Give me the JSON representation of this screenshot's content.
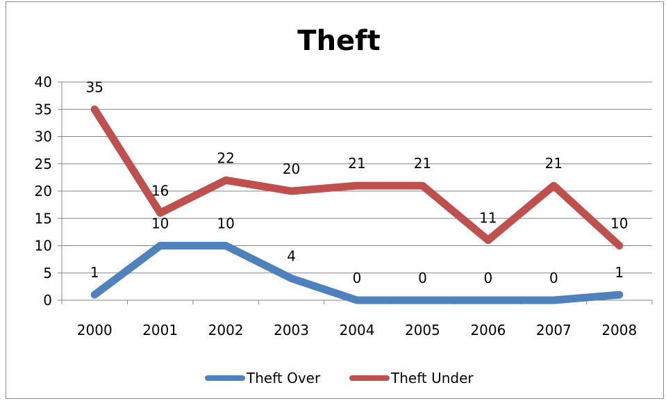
{
  "chart_data": {
    "type": "line",
    "title": "Theft",
    "categories": [
      "2000",
      "2001",
      "2002",
      "2003",
      "2004",
      "2005",
      "2006",
      "2007",
      "2008"
    ],
    "ylim": [
      0,
      40
    ],
    "yticks": [
      0,
      5,
      10,
      15,
      20,
      25,
      30,
      35,
      40
    ],
    "grid": true,
    "legend_position": "bottom",
    "series": [
      {
        "name": "Theft Over",
        "color": "#4f81bd",
        "values": [
          1,
          10,
          10,
          4,
          0,
          0,
          0,
          0,
          1
        ]
      },
      {
        "name": "Theft Under",
        "color": "#c0504d",
        "values": [
          35,
          16,
          22,
          20,
          21,
          21,
          11,
          21,
          10
        ]
      }
    ]
  }
}
